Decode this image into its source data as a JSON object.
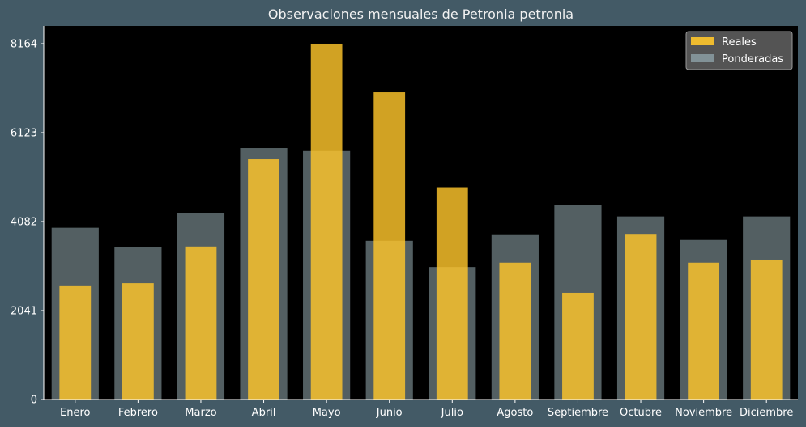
{
  "chart_data": {
    "type": "bar",
    "title": "Observaciones mensuales de Petronia petronia",
    "xlabel": "",
    "ylabel": "",
    "categories": [
      "Enero",
      "Febrero",
      "Marzo",
      "Abril",
      "Mayo",
      "Junio",
      "Julio",
      "Agosto",
      "Septiembre",
      "Octubre",
      "Noviembre",
      "Diciembre"
    ],
    "yticks": [
      0,
      2041,
      4082,
      6123,
      8164
    ],
    "ylim": [
      0,
      8572
    ],
    "grid": false,
    "legend_position": "top-right",
    "series": [
      {
        "name": "Reales",
        "color": "#ffc62b",
        "values": [
          2600,
          2670,
          3510,
          5510,
          8164,
          7050,
          4870,
          3140,
          2450,
          3800,
          3140,
          3210
        ]
      },
      {
        "name": "Ponderadas",
        "color": "#8b9ea3",
        "values": [
          3940,
          3490,
          4270,
          5770,
          5700,
          3640,
          3040,
          3790,
          4470,
          4200,
          3660,
          4200
        ]
      }
    ]
  },
  "colors": {
    "figure_background": "#435a66",
    "plot_background": "#000000",
    "text": "#ffffff"
  }
}
